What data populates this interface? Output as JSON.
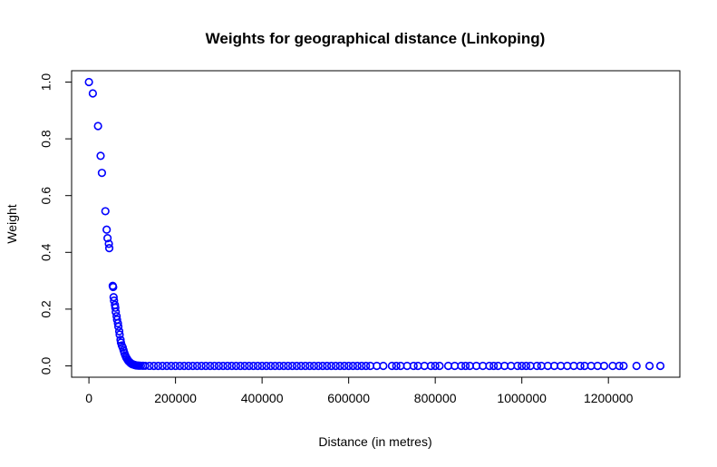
{
  "chart_data": {
    "type": "scatter",
    "title": "Weights for geographical distance (Linkoping)",
    "xlabel": "Distance (in metres)",
    "ylabel": "Weight",
    "xlim": [
      -40000,
      1365000
    ],
    "ylim": [
      -0.04,
      1.04
    ],
    "xticks": [
      0,
      200000,
      400000,
      600000,
      800000,
      1000000,
      1200000
    ],
    "xtick_labels": [
      "0",
      "200000",
      "400000",
      "600000",
      "800000",
      "1000000",
      "1200000"
    ],
    "yticks": [
      0.0,
      0.2,
      0.4,
      0.6,
      0.8,
      1.0
    ],
    "ytick_labels": [
      "0.0",
      "0.2",
      "0.4",
      "0.6",
      "0.8",
      "1.0"
    ],
    "grid": false,
    "legend": "none",
    "marker": "open-circle",
    "color": "#0000ff",
    "series": [
      {
        "x": [
          0,
          9000,
          21000,
          27000,
          30000,
          38000,
          41000,
          43000,
          46000,
          47000,
          55000,
          56000,
          57000,
          58000,
          60000,
          61000,
          62000,
          64000,
          65000,
          67000,
          68000,
          70000,
          71000,
          73000,
          74000,
          76000,
          78000,
          80000,
          82000,
          84000,
          86000,
          88000,
          90000,
          92000,
          94000,
          96000,
          98000,
          100000,
          102000,
          104000,
          106000,
          108000,
          110000,
          113000,
          116000,
          120000,
          125000,
          130000,
          140000,
          150000,
          160000,
          170000,
          180000,
          190000,
          200000,
          210000,
          220000,
          230000,
          240000,
          250000,
          260000,
          270000,
          280000,
          290000,
          300000,
          310000,
          320000,
          330000,
          340000,
          350000,
          360000,
          370000,
          380000,
          390000,
          400000,
          410000,
          420000,
          430000,
          440000,
          450000,
          460000,
          470000,
          480000,
          490000,
          500000,
          510000,
          520000,
          530000,
          540000,
          550000,
          560000,
          570000,
          580000,
          590000,
          600000,
          610000,
          620000,
          630000,
          640000,
          650000,
          665000,
          680000,
          700000,
          710000,
          720000,
          735000,
          750000,
          760000,
          775000,
          790000,
          800000,
          810000,
          830000,
          845000,
          860000,
          870000,
          880000,
          895000,
          910000,
          925000,
          935000,
          945000,
          960000,
          975000,
          990000,
          1000000,
          1010000,
          1020000,
          1035000,
          1045000,
          1060000,
          1075000,
          1090000,
          1105000,
          1120000,
          1135000,
          1145000,
          1160000,
          1175000,
          1190000,
          1210000,
          1225000,
          1235000,
          1265000,
          1295000,
          1320000
        ],
        "y": [
          1.0,
          0.96,
          0.845,
          0.74,
          0.68,
          0.545,
          0.48,
          0.45,
          0.43,
          0.415,
          0.282,
          0.278,
          0.242,
          0.23,
          0.215,
          0.205,
          0.19,
          0.175,
          0.163,
          0.15,
          0.138,
          0.122,
          0.11,
          0.092,
          0.082,
          0.072,
          0.065,
          0.055,
          0.045,
          0.037,
          0.03,
          0.025,
          0.02,
          0.016,
          0.013,
          0.01,
          0.008,
          0.006,
          0.005,
          0.004,
          0.003,
          0.002,
          0.0015,
          0.001,
          0.0008,
          0.0005,
          0.0003,
          0.0002,
          0.0001,
          0.0,
          0.0,
          0.0,
          0.0,
          0.0,
          0.0,
          0.0,
          0.0,
          0.0,
          0.0,
          0.0,
          0.0,
          0.0,
          0.0,
          0.0,
          0.0,
          0.0,
          0.0,
          0.0,
          0.0,
          0.0,
          0.0,
          0.0,
          0.0,
          0.0,
          0.0,
          0.0,
          0.0,
          0.0,
          0.0,
          0.0,
          0.0,
          0.0,
          0.0,
          0.0,
          0.0,
          0.0,
          0.0,
          0.0,
          0.0,
          0.0,
          0.0,
          0.0,
          0.0,
          0.0,
          0.0,
          0.0,
          0.0,
          0.0,
          0.0,
          0.0,
          0.0,
          0.0,
          0.0,
          0.0,
          0.0,
          0.0,
          0.0,
          0.0,
          0.0,
          0.0,
          0.0,
          0.0,
          0.0,
          0.0,
          0.0,
          0.0,
          0.0,
          0.0,
          0.0,
          0.0,
          0.0,
          0.0,
          0.0,
          0.0,
          0.0,
          0.0,
          0.0,
          0.0,
          0.0,
          0.0,
          0.0,
          0.0,
          0.0,
          0.0,
          0.0,
          0.0,
          0.0,
          0.0,
          0.0,
          0.0,
          0.0,
          0.0,
          0.0,
          0.0,
          0.0,
          0.0
        ]
      }
    ]
  }
}
